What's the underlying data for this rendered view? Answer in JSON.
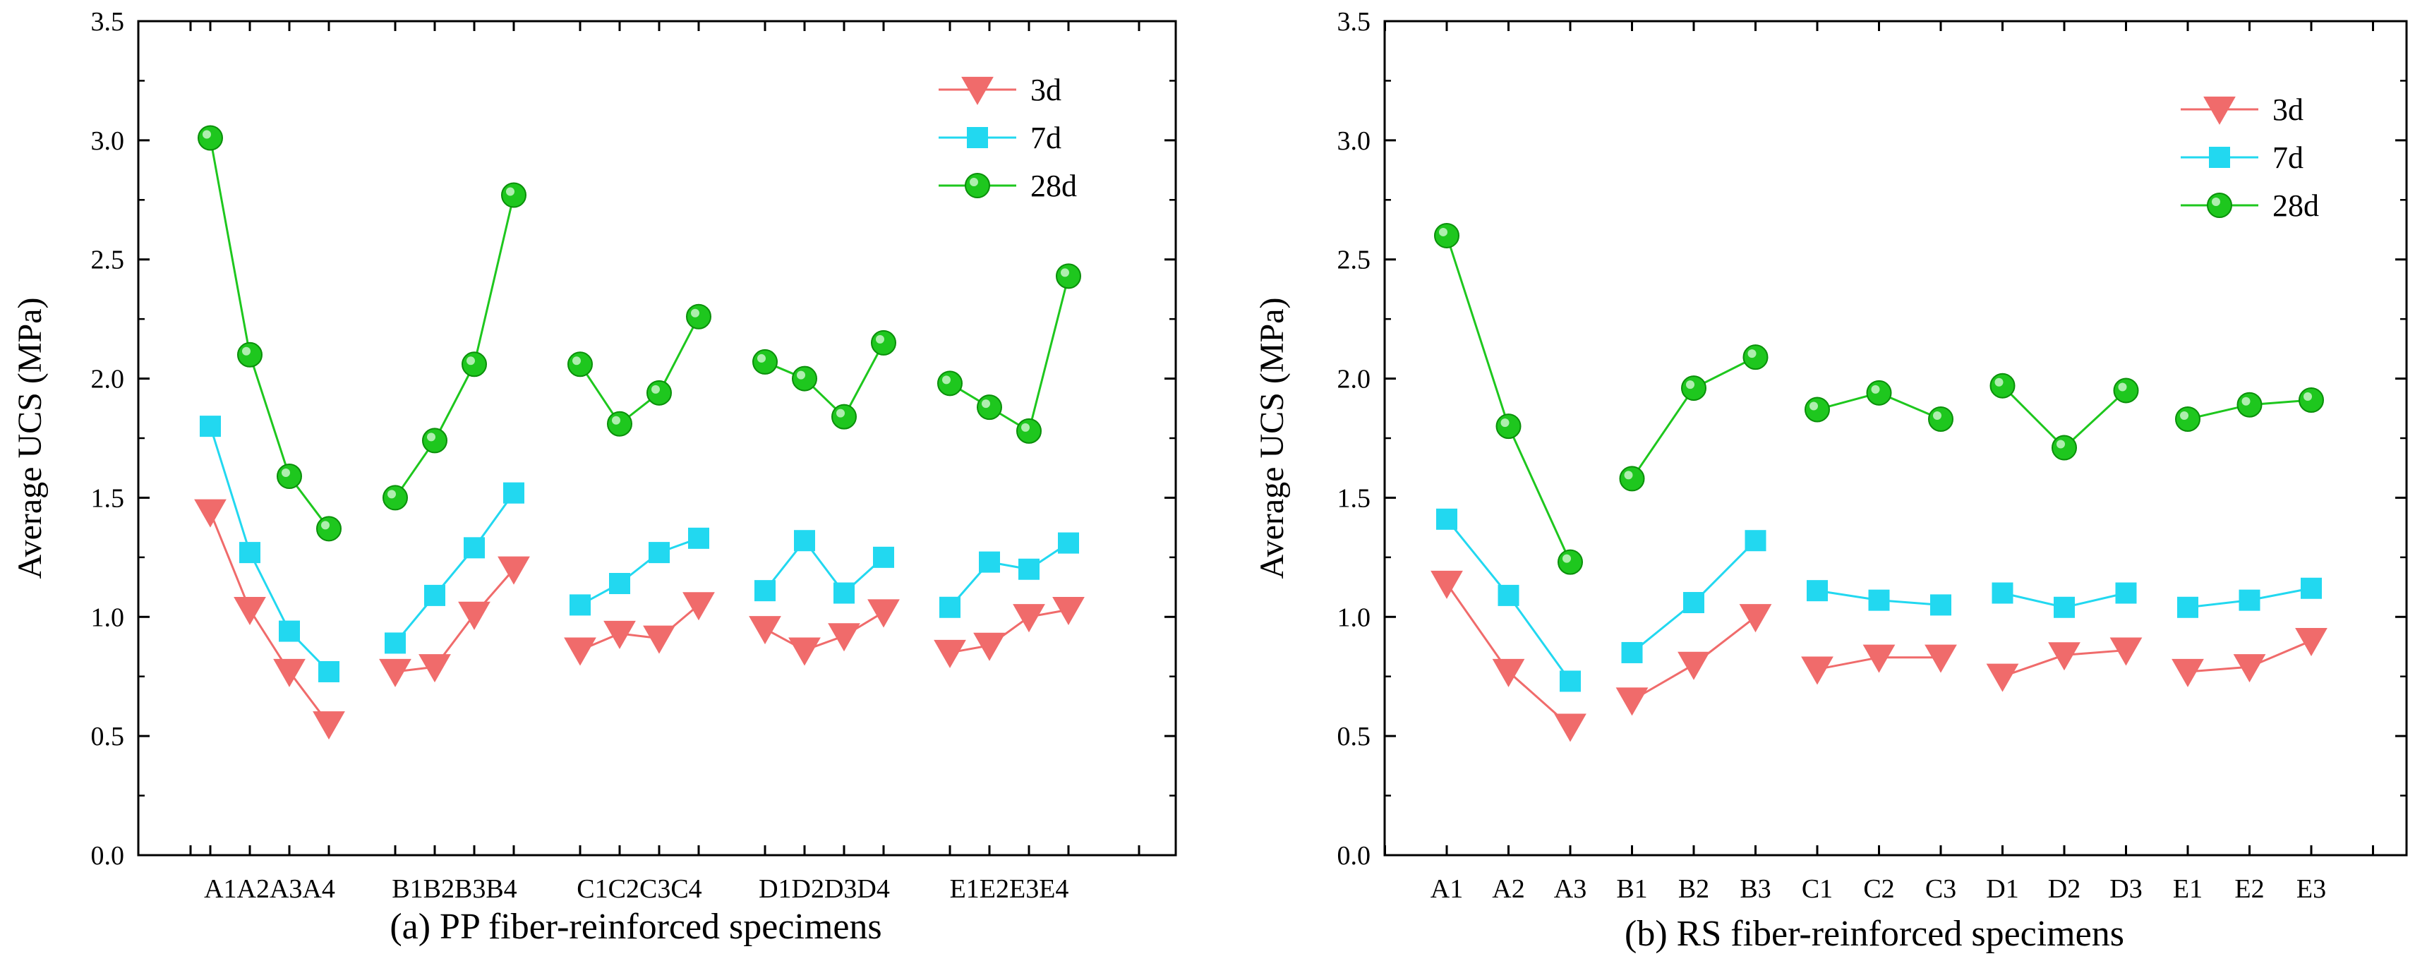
{
  "chart_data": [
    {
      "type": "line",
      "caption": "(a) PP fiber-reinforced specimens",
      "ylabel": "Average UCS (MPa)",
      "xlabel": "",
      "ylim": [
        0,
        3.5
      ],
      "yticks": [
        "0.0",
        "0.5",
        "1.0",
        "1.5",
        "2.0",
        "2.5",
        "3.0",
        "3.5"
      ],
      "legend_position": "top-right",
      "group_labels": [
        "A1A2A3A4",
        "B1B2B3B4",
        "C1C2C3C4",
        "D1D2D3D4",
        "E1E2E3E4"
      ],
      "groups": [
        [
          "A1",
          "A2",
          "A3",
          "A4"
        ],
        [
          "B1",
          "B2",
          "B3",
          "B4"
        ],
        [
          "C1",
          "C2",
          "C3",
          "C4"
        ],
        [
          "D1",
          "D2",
          "D3",
          "D4"
        ],
        [
          "E1",
          "E2",
          "E3",
          "E4"
        ]
      ],
      "series": [
        {
          "name": "3d",
          "color": "#f06b6b",
          "marker": "triangle-down",
          "values": [
            [
              1.44,
              1.03,
              0.77,
              0.55
            ],
            [
              0.77,
              0.79,
              1.01,
              1.2
            ],
            [
              0.86,
              0.93,
              0.91,
              1.05
            ],
            [
              0.95,
              0.86,
              0.92,
              1.02
            ],
            [
              0.85,
              0.88,
              1.0,
              1.03
            ]
          ]
        },
        {
          "name": "7d",
          "color": "#22d8f0",
          "marker": "square",
          "values": [
            [
              1.8,
              1.27,
              0.94,
              0.77
            ],
            [
              0.89,
              1.09,
              1.29,
              1.52
            ],
            [
              1.05,
              1.14,
              1.27,
              1.33
            ],
            [
              1.11,
              1.32,
              1.1,
              1.25
            ],
            [
              1.04,
              1.23,
              1.2,
              1.31
            ]
          ]
        },
        {
          "name": "28d",
          "color": "#1ec71e",
          "marker": "circle",
          "values": [
            [
              3.01,
              2.1,
              1.59,
              1.37
            ],
            [
              1.5,
              1.74,
              2.06,
              2.77
            ],
            [
              2.06,
              1.81,
              1.94,
              2.26
            ],
            [
              2.07,
              2.0,
              1.84,
              2.15
            ],
            [
              1.98,
              1.88,
              1.78,
              2.43
            ]
          ]
        }
      ]
    },
    {
      "type": "line",
      "caption": "(b) RS fiber-reinforced specimens",
      "ylabel": "Average UCS (MPa)",
      "xlabel": "",
      "ylim": [
        0,
        3.5
      ],
      "yticks": [
        "0.0",
        "0.5",
        "1.0",
        "1.5",
        "2.0",
        "2.5",
        "3.0",
        "3.5"
      ],
      "legend_position": "top-right",
      "groups": [
        [
          "A1",
          "A2",
          "A3"
        ],
        [
          "B1",
          "B2",
          "B3"
        ],
        [
          "C1",
          "C2",
          "C3"
        ],
        [
          "D1",
          "D2",
          "D3"
        ],
        [
          "E1",
          "E2",
          "E3"
        ]
      ],
      "series": [
        {
          "name": "3d",
          "color": "#f06b6b",
          "marker": "triangle-down",
          "values": [
            [
              1.14,
              0.77,
              0.54
            ],
            [
              0.65,
              0.8,
              1.0
            ],
            [
              0.78,
              0.83,
              0.83
            ],
            [
              0.75,
              0.84,
              0.86
            ],
            [
              0.77,
              0.79,
              0.9
            ]
          ]
        },
        {
          "name": "7d",
          "color": "#22d8f0",
          "marker": "square",
          "values": [
            [
              1.41,
              1.09,
              0.73
            ],
            [
              0.85,
              1.06,
              1.32
            ],
            [
              1.11,
              1.07,
              1.05
            ],
            [
              1.1,
              1.04,
              1.1
            ],
            [
              1.04,
              1.07,
              1.12
            ]
          ]
        },
        {
          "name": "28d",
          "color": "#1ec71e",
          "marker": "circle",
          "values": [
            [
              2.6,
              1.8,
              1.23
            ],
            [
              1.58,
              1.96,
              2.09
            ],
            [
              1.87,
              1.94,
              1.83
            ],
            [
              1.97,
              1.71,
              1.95
            ],
            [
              1.83,
              1.89,
              1.91
            ]
          ]
        }
      ]
    }
  ]
}
